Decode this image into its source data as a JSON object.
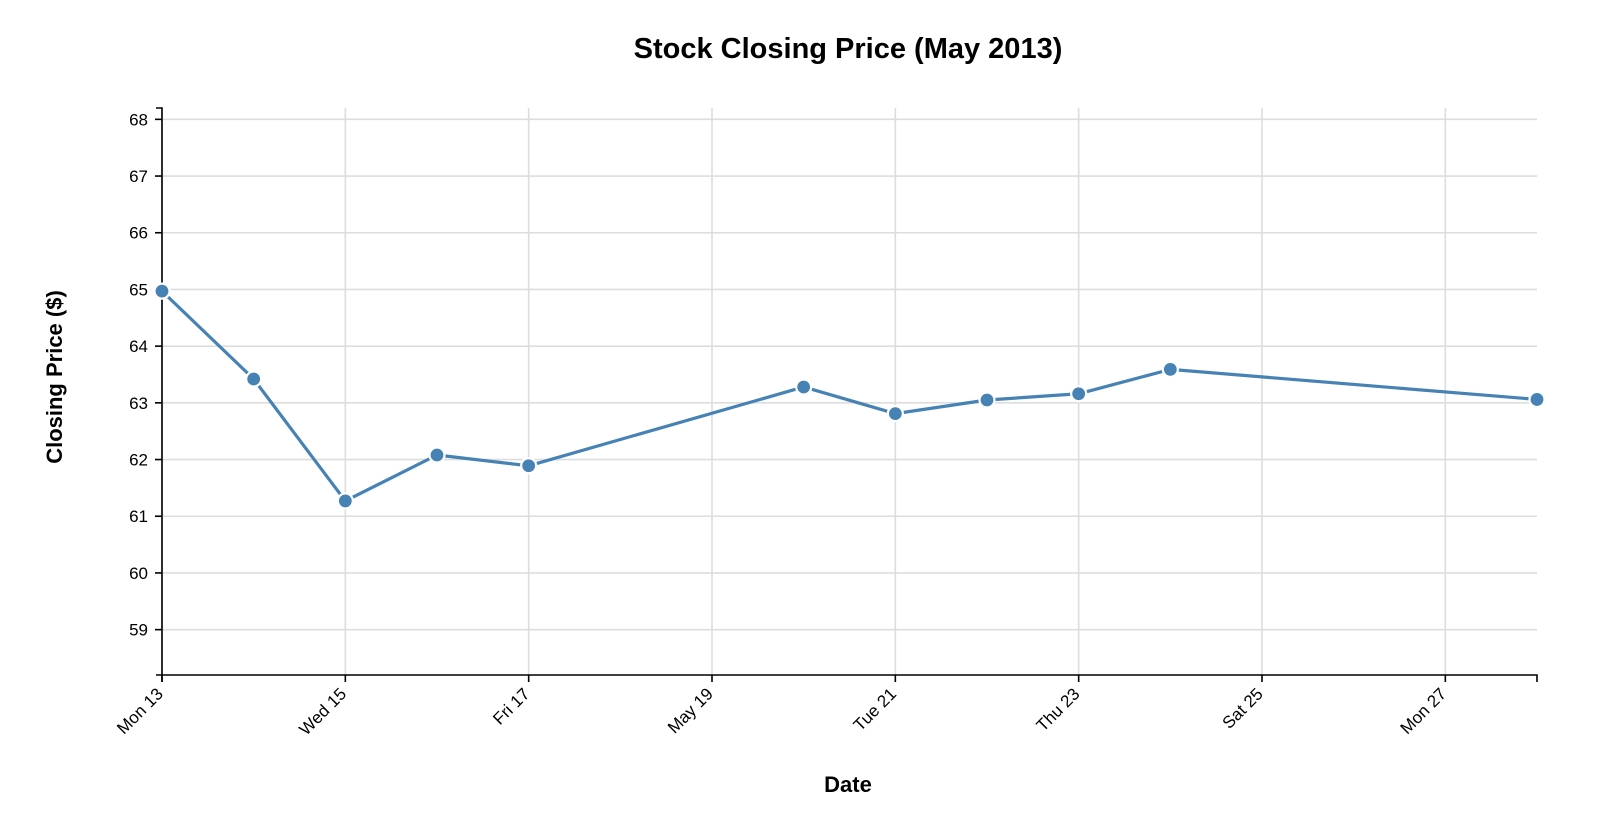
{
  "chart_data": {
    "type": "line",
    "title": "Stock Closing Price (May 2013)",
    "xlabel": "Date",
    "ylabel": "Closing Price ($)",
    "x_ticks": [
      {
        "date": "2013-05-13",
        "label": "Mon 13"
      },
      {
        "date": "2013-05-15",
        "label": "Wed 15"
      },
      {
        "date": "2013-05-17",
        "label": "Fri 17"
      },
      {
        "date": "2013-05-19",
        "label": "May 19"
      },
      {
        "date": "2013-05-21",
        "label": "Tue 21"
      },
      {
        "date": "2013-05-23",
        "label": "Thu 23"
      },
      {
        "date": "2013-05-25",
        "label": "Sat 25"
      },
      {
        "date": "2013-05-27",
        "label": "Mon 27"
      }
    ],
    "y_ticks": [
      59,
      60,
      61,
      62,
      63,
      64,
      65,
      66,
      67,
      68
    ],
    "xlim": [
      "2013-05-13",
      "2013-05-28"
    ],
    "ylim": [
      58.2,
      68.2
    ],
    "grid": true,
    "series": [
      {
        "color": "#4682b4",
        "points": [
          {
            "x": "2013-05-13",
            "y": 64.97
          },
          {
            "x": "2013-05-14",
            "y": 63.42
          },
          {
            "x": "2013-05-15",
            "y": 61.27
          },
          {
            "x": "2013-05-16",
            "y": 62.08
          },
          {
            "x": "2013-05-17",
            "y": 61.89
          },
          {
            "x": "2013-05-20",
            "y": 63.28
          },
          {
            "x": "2013-05-21",
            "y": 62.81
          },
          {
            "x": "2013-05-22",
            "y": 63.05
          },
          {
            "x": "2013-05-23",
            "y": 63.16
          },
          {
            "x": "2013-05-24",
            "y": 63.59
          },
          {
            "x": "2013-05-28",
            "y": 63.06
          }
        ]
      }
    ]
  }
}
